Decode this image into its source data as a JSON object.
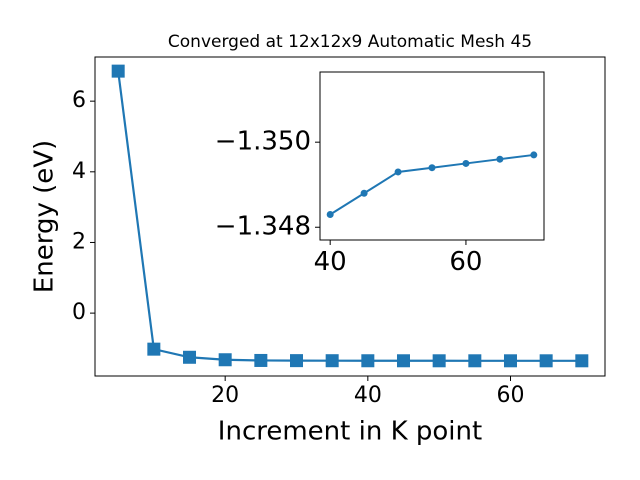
{
  "chart_data": [
    {
      "type": "line",
      "title": "Converged at 12x12x9 Automatic Mesh 45",
      "xlabel": "Increment in K point",
      "ylabel": "Energy (eV)",
      "x": [
        5,
        10,
        15,
        20,
        25,
        30,
        35,
        40,
        45,
        50,
        55,
        60,
        65,
        70
      ],
      "series": [
        {
          "color": "#1f77b4",
          "marker": "square",
          "values": [
            6.85,
            -1.02,
            -1.25,
            -1.32,
            -1.34,
            -1.345,
            -1.347,
            -1.3483,
            -1.3488,
            -1.3493,
            -1.3494,
            -1.3495,
            -1.3496,
            -1.3497
          ]
        }
      ],
      "xlim": [
        1.75,
        73.25
      ],
      "xticks": [
        20,
        40,
        60
      ],
      "ylim": [
        -1.78,
        7.25
      ],
      "yticks": [
        0,
        2,
        4,
        6
      ]
    },
    {
      "type": "line",
      "x": [
        40,
        45,
        50,
        55,
        60,
        65,
        70
      ],
      "series": [
        {
          "color": "#1f77b4",
          "marker": "circle",
          "values": [
            -1.3483,
            -1.3488,
            -1.3493,
            -1.3494,
            -1.3495,
            -1.3496,
            -1.3497
          ]
        }
      ],
      "xlim": [
        38.5,
        71.5
      ],
      "xticks": [
        40,
        60
      ],
      "ylim": [
        -1.3477,
        -1.35165
      ],
      "yticks": [
        {
          "value": -1.35,
          "label": "−1.350"
        },
        {
          "value": -1.348,
          "label": "−1.348"
        }
      ]
    }
  ]
}
